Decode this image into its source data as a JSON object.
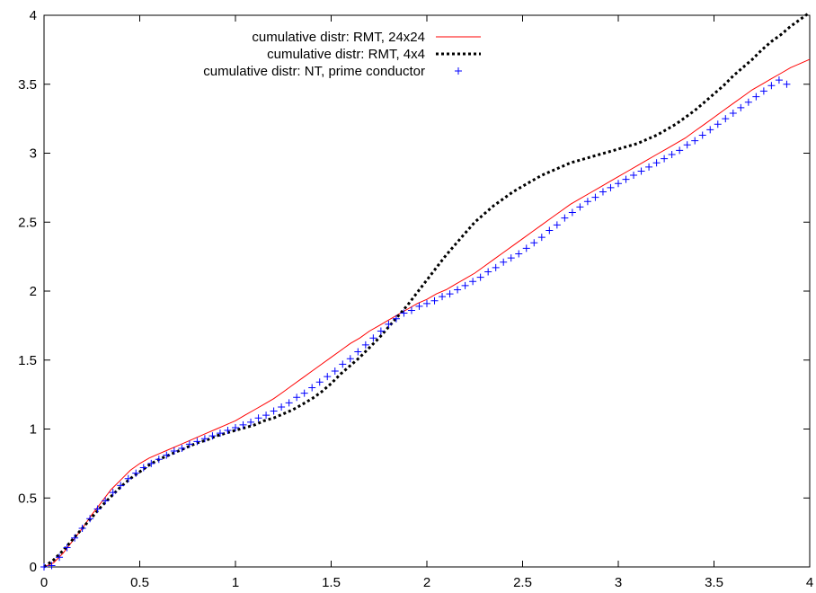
{
  "chart_data": {
    "type": "line",
    "title": "",
    "xlabel": "",
    "ylabel": "",
    "xlim": [
      0,
      4
    ],
    "ylim": [
      0,
      4
    ],
    "x_ticks": [
      0,
      0.5,
      1,
      1.5,
      2,
      2.5,
      3,
      3.5,
      4
    ],
    "x_tick_labels": [
      "0",
      "0.5",
      "1",
      "1.5",
      "2",
      "2.5",
      "3",
      "3.5",
      "4"
    ],
    "y_ticks": [
      0,
      0.5,
      1,
      1.5,
      2,
      2.5,
      3,
      3.5,
      4
    ],
    "y_tick_labels": [
      "0",
      "0.5",
      "1",
      "1.5",
      "2",
      "2.5",
      "3",
      "3.5",
      "4"
    ],
    "grid": false,
    "legend_position": "top-center",
    "series": [
      {
        "name": "cumulative distr: RMT, 24x24",
        "style": "solid-line",
        "color": "#ff0000",
        "points": [
          [
            0,
            0
          ],
          [
            0.05,
            0.03
          ],
          [
            0.1,
            0.1
          ],
          [
            0.15,
            0.19
          ],
          [
            0.2,
            0.28
          ],
          [
            0.25,
            0.38
          ],
          [
            0.3,
            0.47
          ],
          [
            0.35,
            0.56
          ],
          [
            0.4,
            0.63
          ],
          [
            0.45,
            0.7
          ],
          [
            0.5,
            0.75
          ],
          [
            0.55,
            0.79
          ],
          [
            0.6,
            0.82
          ],
          [
            0.65,
            0.85
          ],
          [
            0.7,
            0.88
          ],
          [
            0.75,
            0.91
          ],
          [
            0.8,
            0.94
          ],
          [
            0.85,
            0.97
          ],
          [
            0.9,
            1.0
          ],
          [
            0.95,
            1.03
          ],
          [
            1.0,
            1.06
          ],
          [
            1.05,
            1.1
          ],
          [
            1.1,
            1.14
          ],
          [
            1.15,
            1.18
          ],
          [
            1.2,
            1.22
          ],
          [
            1.25,
            1.27
          ],
          [
            1.3,
            1.32
          ],
          [
            1.35,
            1.37
          ],
          [
            1.4,
            1.42
          ],
          [
            1.45,
            1.47
          ],
          [
            1.5,
            1.52
          ],
          [
            1.55,
            1.57
          ],
          [
            1.6,
            1.62
          ],
          [
            1.65,
            1.66
          ],
          [
            1.7,
            1.71
          ],
          [
            1.75,
            1.75
          ],
          [
            1.8,
            1.79
          ],
          [
            1.85,
            1.83
          ],
          [
            1.9,
            1.87
          ],
          [
            1.95,
            1.91
          ],
          [
            2.0,
            1.94
          ],
          [
            2.05,
            1.98
          ],
          [
            2.1,
            2.01
          ],
          [
            2.15,
            2.05
          ],
          [
            2.2,
            2.09
          ],
          [
            2.25,
            2.13
          ],
          [
            2.3,
            2.18
          ],
          [
            2.35,
            2.23
          ],
          [
            2.4,
            2.28
          ],
          [
            2.45,
            2.33
          ],
          [
            2.5,
            2.38
          ],
          [
            2.55,
            2.43
          ],
          [
            2.6,
            2.48
          ],
          [
            2.65,
            2.53
          ],
          [
            2.7,
            2.58
          ],
          [
            2.75,
            2.63
          ],
          [
            2.8,
            2.67
          ],
          [
            2.85,
            2.71
          ],
          [
            2.9,
            2.75
          ],
          [
            2.95,
            2.79
          ],
          [
            3.0,
            2.83
          ],
          [
            3.05,
            2.87
          ],
          [
            3.1,
            2.91
          ],
          [
            3.15,
            2.95
          ],
          [
            3.2,
            2.99
          ],
          [
            3.25,
            3.03
          ],
          [
            3.3,
            3.07
          ],
          [
            3.35,
            3.11
          ],
          [
            3.4,
            3.16
          ],
          [
            3.45,
            3.21
          ],
          [
            3.5,
            3.26
          ],
          [
            3.55,
            3.31
          ],
          [
            3.6,
            3.36
          ],
          [
            3.65,
            3.41
          ],
          [
            3.7,
            3.46
          ],
          [
            3.75,
            3.5
          ],
          [
            3.8,
            3.54
          ],
          [
            3.85,
            3.58
          ],
          [
            3.9,
            3.62
          ],
          [
            3.95,
            3.65
          ],
          [
            4.0,
            3.68
          ]
        ]
      },
      {
        "name": "cumulative distr: RMT, 4x4",
        "style": "dotted-line",
        "color": "#000000",
        "points": [
          [
            0,
            0
          ],
          [
            0.05,
            0.05
          ],
          [
            0.1,
            0.12
          ],
          [
            0.15,
            0.2
          ],
          [
            0.2,
            0.28
          ],
          [
            0.25,
            0.36
          ],
          [
            0.3,
            0.44
          ],
          [
            0.35,
            0.51
          ],
          [
            0.4,
            0.58
          ],
          [
            0.45,
            0.64
          ],
          [
            0.5,
            0.69
          ],
          [
            0.55,
            0.74
          ],
          [
            0.6,
            0.78
          ],
          [
            0.65,
            0.81
          ],
          [
            0.7,
            0.84
          ],
          [
            0.75,
            0.87
          ],
          [
            0.8,
            0.9
          ],
          [
            0.85,
            0.92
          ],
          [
            0.9,
            0.95
          ],
          [
            0.95,
            0.97
          ],
          [
            1.0,
            0.99
          ],
          [
            1.05,
            1.01
          ],
          [
            1.1,
            1.03
          ],
          [
            1.15,
            1.06
          ],
          [
            1.2,
            1.08
          ],
          [
            1.25,
            1.11
          ],
          [
            1.3,
            1.14
          ],
          [
            1.35,
            1.18
          ],
          [
            1.4,
            1.22
          ],
          [
            1.45,
            1.27
          ],
          [
            1.5,
            1.33
          ],
          [
            1.55,
            1.4
          ],
          [
            1.6,
            1.46
          ],
          [
            1.65,
            1.52
          ],
          [
            1.7,
            1.59
          ],
          [
            1.75,
            1.66
          ],
          [
            1.8,
            1.74
          ],
          [
            1.85,
            1.82
          ],
          [
            1.9,
            1.9
          ],
          [
            1.95,
            1.99
          ],
          [
            2.0,
            2.08
          ],
          [
            2.05,
            2.17
          ],
          [
            2.1,
            2.26
          ],
          [
            2.15,
            2.34
          ],
          [
            2.2,
            2.42
          ],
          [
            2.25,
            2.5
          ],
          [
            2.3,
            2.56
          ],
          [
            2.35,
            2.62
          ],
          [
            2.4,
            2.67
          ],
          [
            2.45,
            2.72
          ],
          [
            2.5,
            2.76
          ],
          [
            2.55,
            2.8
          ],
          [
            2.6,
            2.84
          ],
          [
            2.65,
            2.87
          ],
          [
            2.7,
            2.9
          ],
          [
            2.75,
            2.93
          ],
          [
            2.8,
            2.95
          ],
          [
            2.85,
            2.97
          ],
          [
            2.9,
            2.99
          ],
          [
            2.95,
            3.01
          ],
          [
            3.0,
            3.03
          ],
          [
            3.05,
            3.05
          ],
          [
            3.1,
            3.07
          ],
          [
            3.15,
            3.1
          ],
          [
            3.2,
            3.13
          ],
          [
            3.25,
            3.17
          ],
          [
            3.3,
            3.21
          ],
          [
            3.35,
            3.26
          ],
          [
            3.4,
            3.31
          ],
          [
            3.45,
            3.37
          ],
          [
            3.5,
            3.43
          ],
          [
            3.55,
            3.49
          ],
          [
            3.6,
            3.56
          ],
          [
            3.65,
            3.62
          ],
          [
            3.7,
            3.68
          ],
          [
            3.75,
            3.75
          ],
          [
            3.8,
            3.81
          ],
          [
            3.85,
            3.86
          ],
          [
            3.9,
            3.92
          ],
          [
            3.95,
            3.97
          ],
          [
            4.0,
            4.02
          ]
        ]
      },
      {
        "name": "cumulative distr: NT, prime conductor",
        "style": "plus-markers",
        "color": "#0000ff",
        "points": [
          [
            0.0,
            0.0
          ],
          [
            0.04,
            0.01
          ],
          [
            0.08,
            0.07
          ],
          [
            0.12,
            0.14
          ],
          [
            0.16,
            0.21
          ],
          [
            0.2,
            0.28
          ],
          [
            0.24,
            0.35
          ],
          [
            0.28,
            0.42
          ],
          [
            0.32,
            0.48
          ],
          [
            0.36,
            0.54
          ],
          [
            0.4,
            0.59
          ],
          [
            0.44,
            0.64
          ],
          [
            0.48,
            0.68
          ],
          [
            0.52,
            0.72
          ],
          [
            0.56,
            0.75
          ],
          [
            0.6,
            0.78
          ],
          [
            0.64,
            0.81
          ],
          [
            0.68,
            0.84
          ],
          [
            0.72,
            0.86
          ],
          [
            0.76,
            0.89
          ],
          [
            0.8,
            0.91
          ],
          [
            0.84,
            0.93
          ],
          [
            0.88,
            0.95
          ],
          [
            0.92,
            0.97
          ],
          [
            0.96,
            0.99
          ],
          [
            1.0,
            1.01
          ],
          [
            1.04,
            1.03
          ],
          [
            1.08,
            1.05
          ],
          [
            1.12,
            1.08
          ],
          [
            1.16,
            1.1
          ],
          [
            1.2,
            1.13
          ],
          [
            1.24,
            1.16
          ],
          [
            1.28,
            1.19
          ],
          [
            1.32,
            1.23
          ],
          [
            1.36,
            1.26
          ],
          [
            1.4,
            1.3
          ],
          [
            1.44,
            1.34
          ],
          [
            1.48,
            1.38
          ],
          [
            1.52,
            1.42
          ],
          [
            1.56,
            1.47
          ],
          [
            1.6,
            1.51
          ],
          [
            1.64,
            1.56
          ],
          [
            1.68,
            1.61
          ],
          [
            1.72,
            1.66
          ],
          [
            1.76,
            1.71
          ],
          [
            1.8,
            1.76
          ],
          [
            1.84,
            1.8
          ],
          [
            1.88,
            1.84
          ],
          [
            1.92,
            1.86
          ],
          [
            1.96,
            1.89
          ],
          [
            2.0,
            1.91
          ],
          [
            2.04,
            1.93
          ],
          [
            2.08,
            1.96
          ],
          [
            2.12,
            1.98
          ],
          [
            2.16,
            2.01
          ],
          [
            2.2,
            2.04
          ],
          [
            2.24,
            2.07
          ],
          [
            2.28,
            2.1
          ],
          [
            2.32,
            2.14
          ],
          [
            2.36,
            2.17
          ],
          [
            2.4,
            2.21
          ],
          [
            2.44,
            2.24
          ],
          [
            2.48,
            2.27
          ],
          [
            2.52,
            2.31
          ],
          [
            2.56,
            2.35
          ],
          [
            2.6,
            2.39
          ],
          [
            2.64,
            2.44
          ],
          [
            2.68,
            2.48
          ],
          [
            2.72,
            2.53
          ],
          [
            2.76,
            2.57
          ],
          [
            2.8,
            2.61
          ],
          [
            2.84,
            2.65
          ],
          [
            2.88,
            2.68
          ],
          [
            2.92,
            2.72
          ],
          [
            2.96,
            2.75
          ],
          [
            3.0,
            2.78
          ],
          [
            3.04,
            2.81
          ],
          [
            3.08,
            2.84
          ],
          [
            3.12,
            2.87
          ],
          [
            3.16,
            2.9
          ],
          [
            3.2,
            2.93
          ],
          [
            3.24,
            2.96
          ],
          [
            3.28,
            2.99
          ],
          [
            3.32,
            3.02
          ],
          [
            3.36,
            3.06
          ],
          [
            3.4,
            3.09
          ],
          [
            3.44,
            3.13
          ],
          [
            3.48,
            3.17
          ],
          [
            3.52,
            3.21
          ],
          [
            3.56,
            3.25
          ],
          [
            3.6,
            3.29
          ],
          [
            3.64,
            3.33
          ],
          [
            3.68,
            3.37
          ],
          [
            3.72,
            3.41
          ],
          [
            3.76,
            3.45
          ],
          [
            3.8,
            3.49
          ],
          [
            3.84,
            3.53
          ],
          [
            3.88,
            3.5
          ]
        ]
      }
    ]
  }
}
